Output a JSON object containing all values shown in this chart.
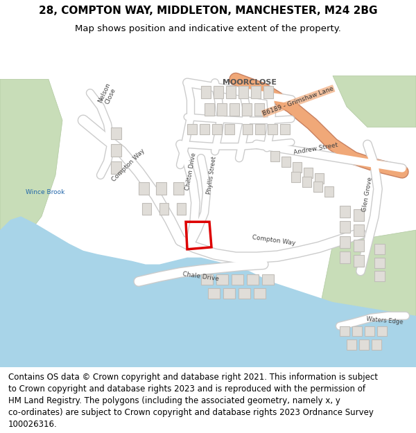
{
  "title_line1": "28, COMPTON WAY, MIDDLETON, MANCHESTER, M24 2BG",
  "title_line2": "Map shows position and indicative extent of the property.",
  "footer_lines": [
    "Contains OS data © Crown copyright and database right 2021. This information is subject",
    "to Crown copyright and database rights 2023 and is reproduced with the permission of",
    "HM Land Registry. The polygons (including the associated geometry, namely x, y",
    "co-ordinates) are subject to Crown copyright and database rights 2023 Ordnance Survey",
    "100026316."
  ],
  "map_bg": "#f0eeea",
  "road_color": "#ffffff",
  "road_outline": "#cccccc",
  "building_color": "#e0ddd8",
  "building_outline": "#c0bdb8",
  "water_color": "#a8d4e8",
  "green_color": "#c8ddb8",
  "green_outline": "#b0c8a0",
  "orange_road_color": "#f0a878",
  "orange_road_outline": "#c88060",
  "red_outline_color": "#dd0000",
  "title_fontsize": 11,
  "subtitle_fontsize": 9.5,
  "footer_fontsize": 8.5,
  "label_color": "#444444",
  "moorclose_color": "#555555",
  "water_label_color": "#2266aa"
}
